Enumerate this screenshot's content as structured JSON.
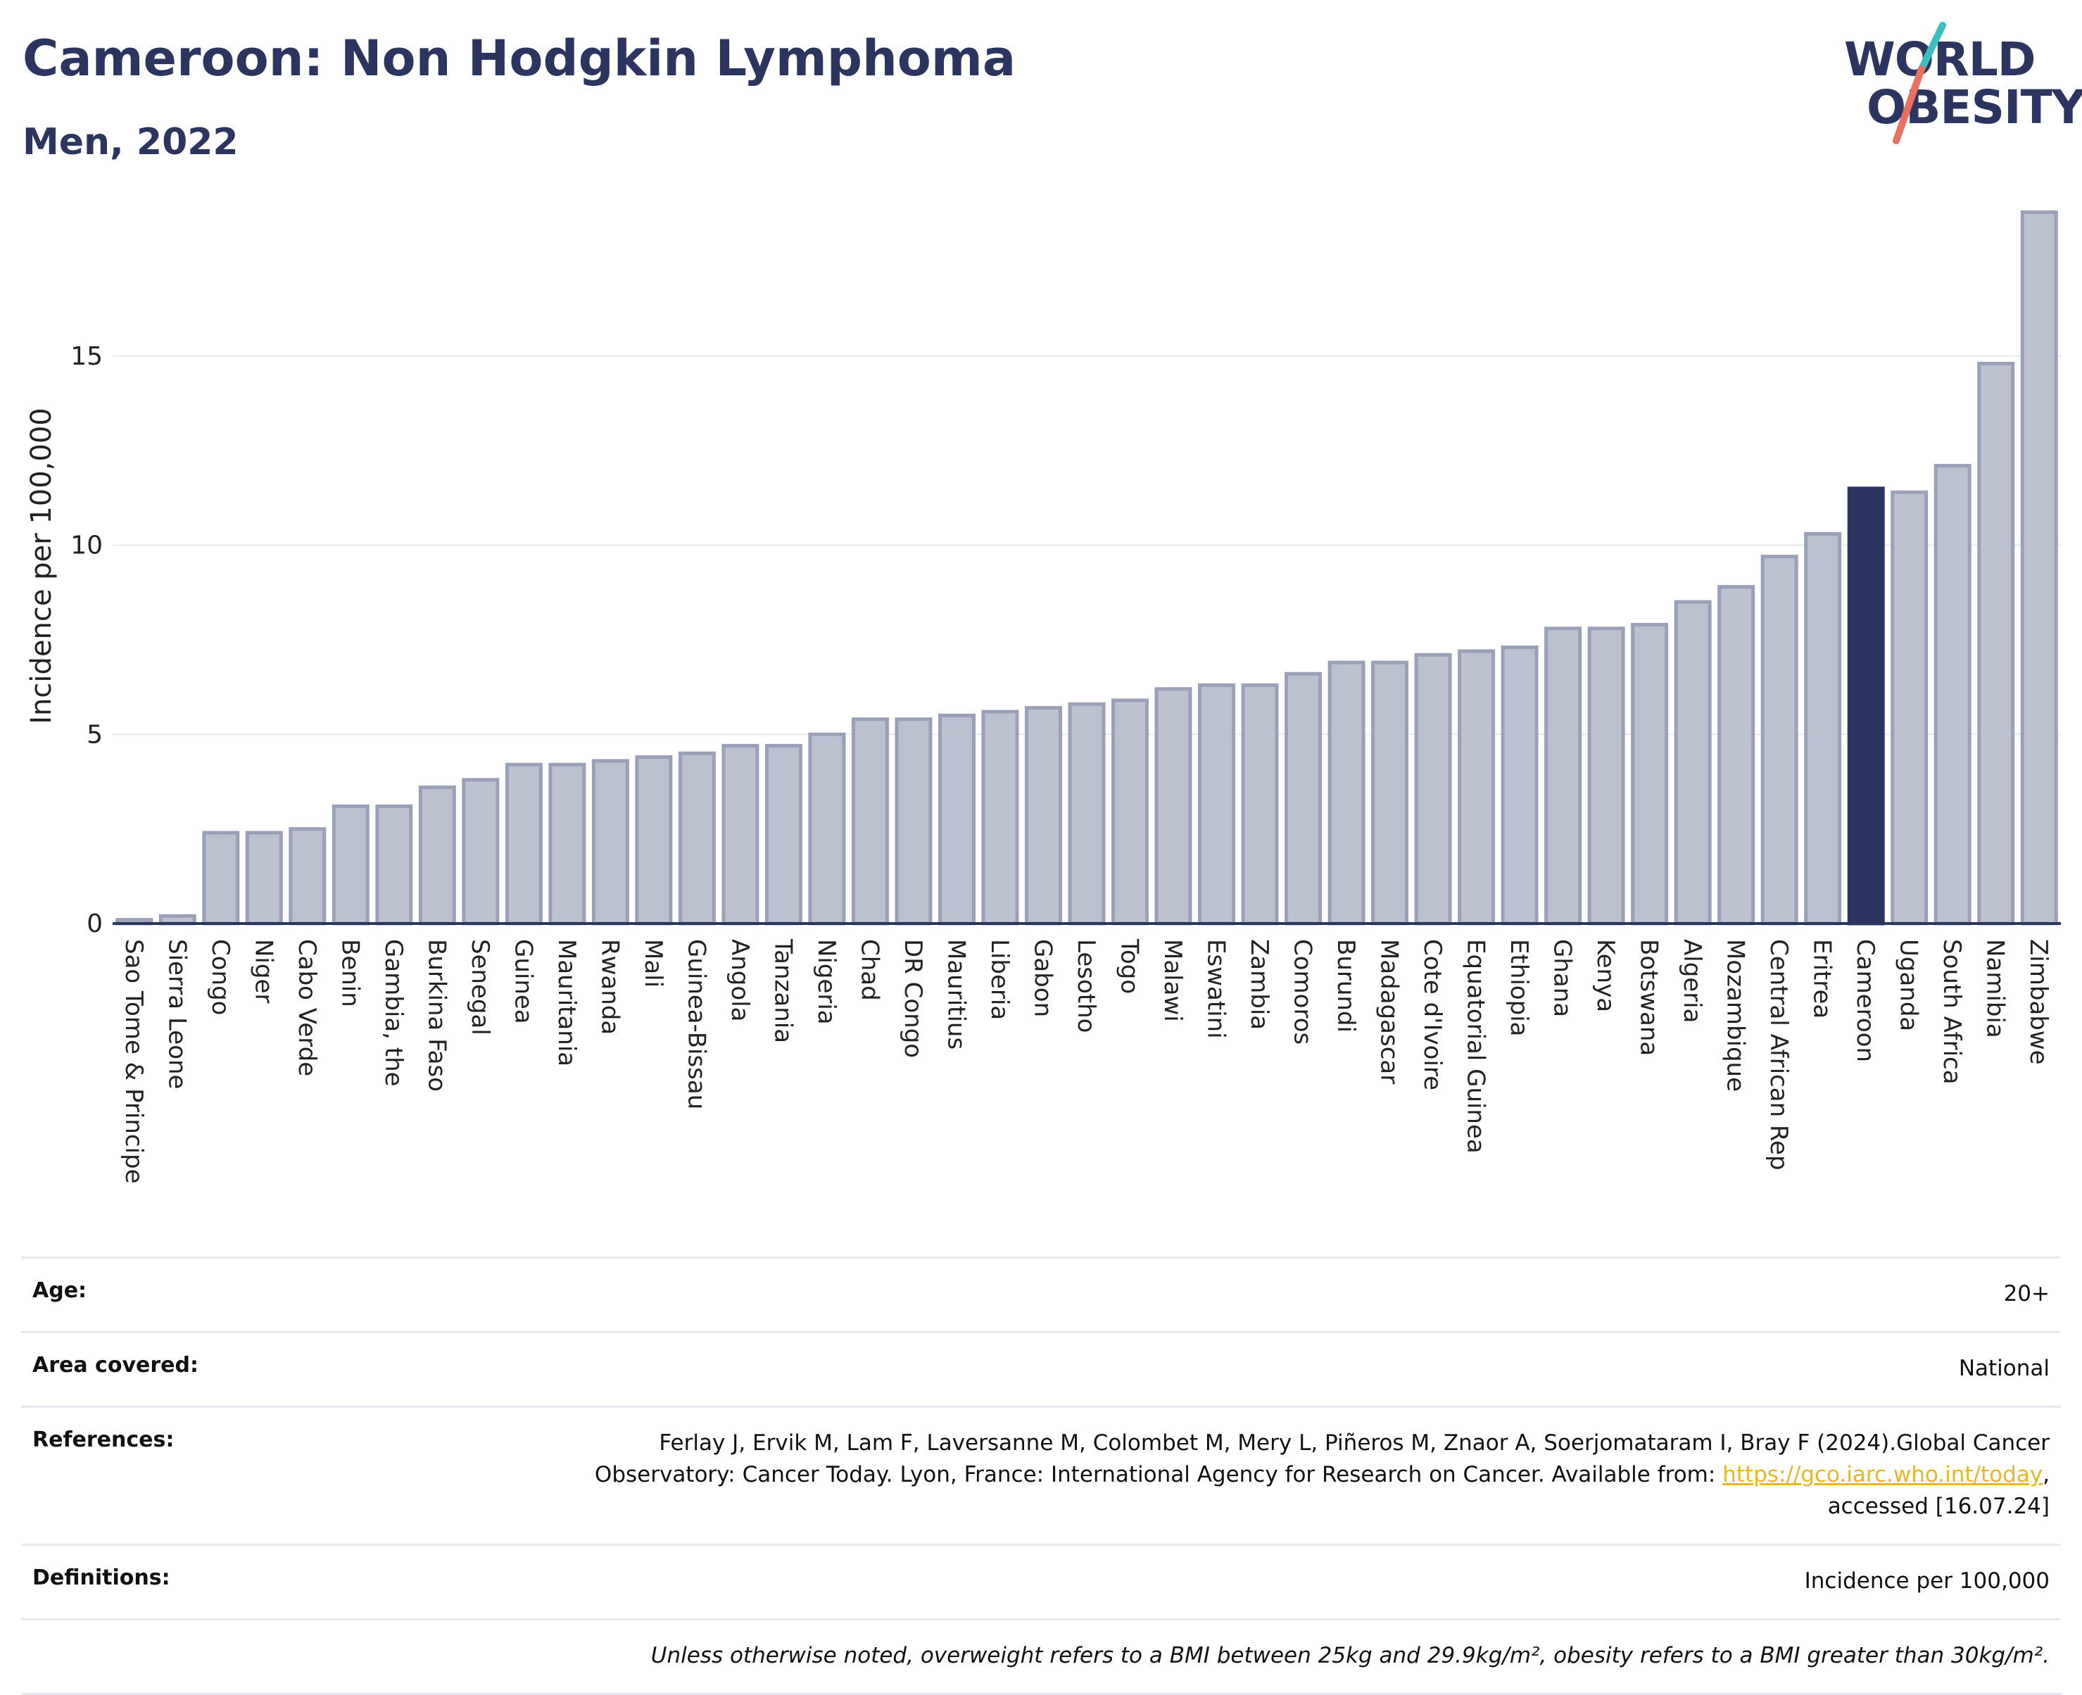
{
  "header": {
    "title": "Cameroon: Non Hodgkin Lymphoma",
    "subtitle": "Men, 2022"
  },
  "logo": {
    "line1": "WORLD",
    "line2": "OBESITY",
    "colors": {
      "text": "#2b3560",
      "slash_top": "#3bbfc0",
      "slash_bottom": "#e7705f"
    }
  },
  "colors": {
    "bar_default": "#bcc1d0",
    "bar_default_stroke": "#9aa0b8",
    "bar_highlight": "#2b3560",
    "axis": "#2b3560",
    "grid": "#e6e9f0",
    "link": "#e8b81f"
  },
  "chart_data": {
    "type": "bar",
    "title": "",
    "xlabel": "",
    "ylabel": "Incidence per 100,000",
    "ylim": [
      0,
      19.2
    ],
    "yticks": [
      0,
      5,
      10,
      15
    ],
    "grid": true,
    "highlight": "Cameroon",
    "categories": [
      "Sao Tome & Principe",
      "Sierra Leone",
      "Congo",
      "Niger",
      "Cabo Verde",
      "Benin",
      "Gambia, the",
      "Burkina Faso",
      "Senegal",
      "Guinea",
      "Mauritania",
      "Rwanda",
      "Mali",
      "Guinea-Bissau",
      "Angola",
      "Tanzania",
      "Nigeria",
      "Chad",
      "DR Congo",
      "Mauritius",
      "Liberia",
      "Gabon",
      "Lesotho",
      "Togo",
      "Malawi",
      "Eswatini",
      "Zambia",
      "Comoros",
      "Burundi",
      "Madagascar",
      "Cote d'Ivoire",
      "Equatorial Guinea",
      "Ethiopia",
      "Ghana",
      "Kenya",
      "Botswana",
      "Algeria",
      "Mozambique",
      "Central African Rep",
      "Eritrea",
      "Cameroon",
      "Uganda",
      "South Africa",
      "Namibia",
      "Zimbabwe"
    ],
    "values": [
      0.1,
      0.2,
      2.4,
      2.4,
      2.5,
      3.1,
      3.1,
      3.6,
      3.8,
      4.2,
      4.2,
      4.3,
      4.4,
      4.5,
      4.7,
      4.7,
      5.0,
      5.4,
      5.4,
      5.5,
      5.6,
      5.7,
      5.8,
      5.9,
      6.2,
      6.3,
      6.3,
      6.6,
      6.9,
      6.9,
      7.1,
      7.2,
      7.3,
      7.8,
      7.8,
      7.9,
      8.5,
      8.9,
      9.7,
      10.3,
      11.5,
      11.4,
      12.1,
      14.8,
      18.8
    ]
  },
  "footer": {
    "age_label": "Age:",
    "age_value": "20+",
    "area_label": "Area covered:",
    "area_value": "National",
    "references_label": "References:",
    "references_line1": "Ferlay J, Ervik M, Lam F, Laversanne M, Colombet M, Mery L, Piñeros M, Znaor A, Soerjomataram I, Bray F (2024).Global Cancer",
    "references_line2": "Observatory: Cancer Today. Lyon, France: International Agency for Research on Cancer. Available from:",
    "references_link": "https://gco.iarc.who.int/today",
    "references_line3": "accessed [16.07.24]",
    "definitions_label": "Definitions:",
    "definitions_value": "Incidence per 100,000",
    "note": "Unless otherwise noted, overweight refers to a BMI between 25kg and 29.9kg/m², obesity refers to a BMI greater than 30kg/m²."
  }
}
